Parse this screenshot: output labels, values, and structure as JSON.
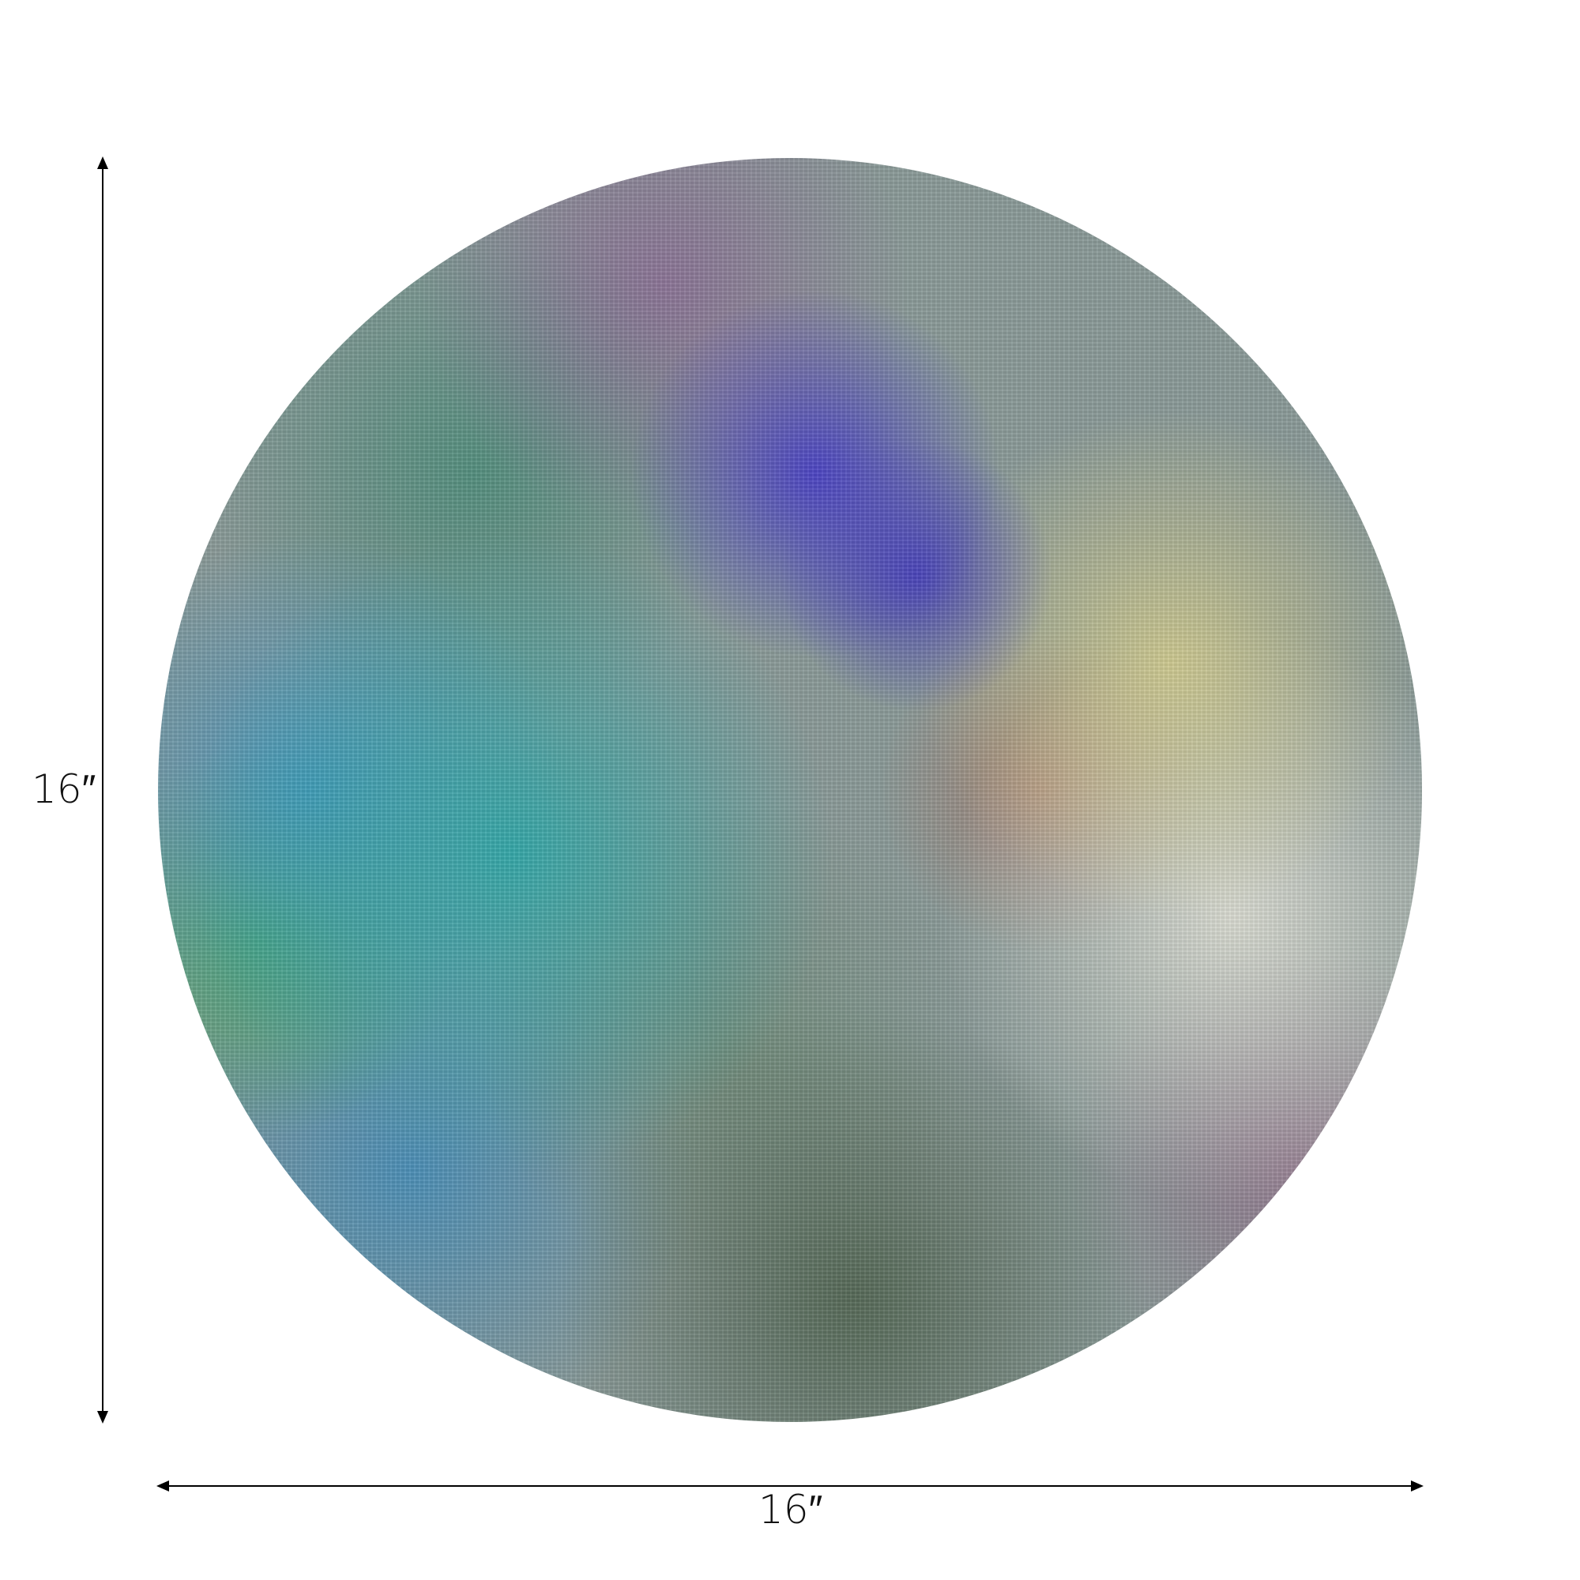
{
  "product": {
    "image": "abstract-watercolor-round-placemat",
    "colors": [
      "#2aa6a8",
      "#463cc8",
      "#dcd28c",
      "#50644f",
      "#3c8cc8"
    ]
  },
  "dimensions": {
    "height_label": "16″",
    "width_label": "16″"
  }
}
